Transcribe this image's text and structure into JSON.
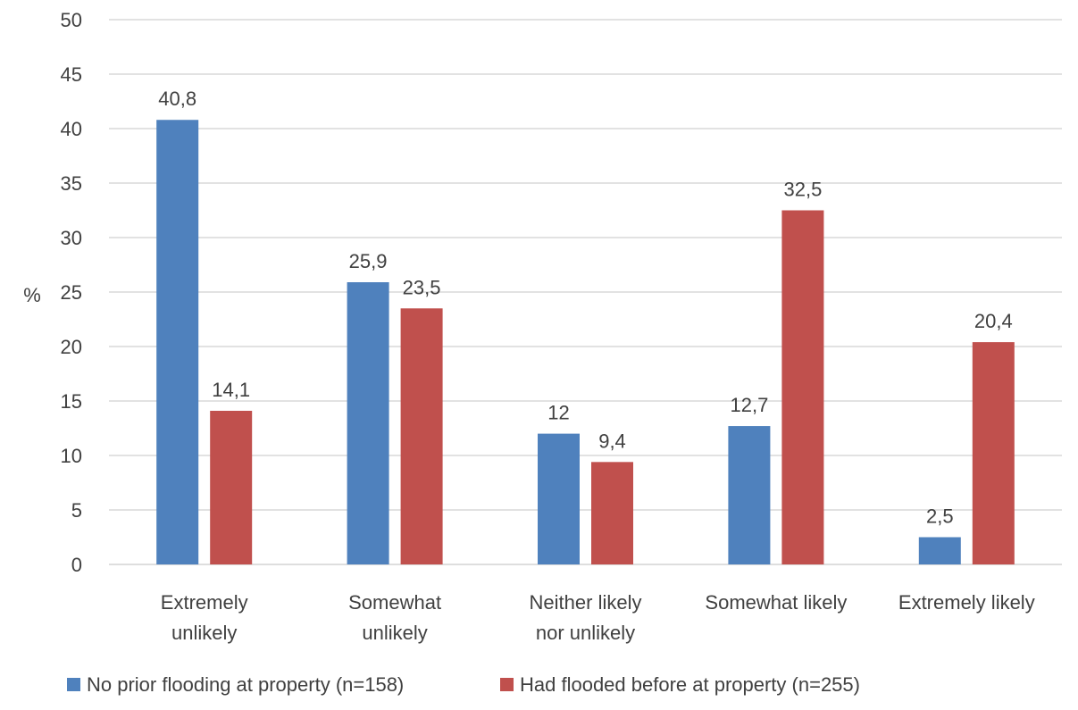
{
  "chart_data": {
    "type": "bar",
    "title": "",
    "xlabel": "",
    "ylabel": "%",
    "ylim": [
      0,
      50
    ],
    "yticks": [
      0,
      5,
      10,
      15,
      20,
      25,
      30,
      35,
      40,
      45,
      50
    ],
    "grid": "horizontal",
    "legend_position": "bottom",
    "categories": [
      [
        "Extremely",
        "unlikely"
      ],
      [
        "Somewhat",
        "unlikely"
      ],
      [
        "Neither likely",
        "nor unlikely"
      ],
      [
        "Somewhat likely"
      ],
      [
        "Extremely likely"
      ]
    ],
    "series": [
      {
        "name": "No prior flooding at property (n=158)",
        "color": "#4f81bd",
        "values": [
          40.8,
          25.9,
          12,
          12.7,
          2.5
        ],
        "labels": [
          "40,8",
          "25,9",
          "12",
          "12,7",
          "2,5"
        ]
      },
      {
        "name": "Had flooded before at property (n=255)",
        "color": "#c0504d",
        "values": [
          14.1,
          23.5,
          9.4,
          32.5,
          20.4
        ],
        "labels": [
          "14,1",
          "23,5",
          "9,4",
          "32,5",
          "20,4"
        ]
      }
    ],
    "grid_color": "#d9d9d9",
    "text_color": "#404040"
  }
}
